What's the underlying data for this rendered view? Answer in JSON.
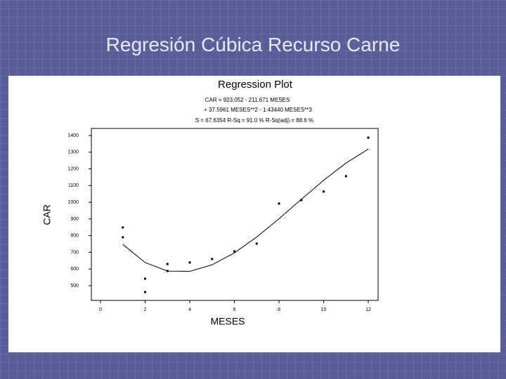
{
  "slide_title": "Regresión Cúbica Recurso Carne",
  "chart_data": {
    "type": "scatter",
    "title": "Regression Plot",
    "subtitle": [
      "CAR = 923.052 - 211.671 MESES",
      "+ 37.5961 MESES**2 - 1.43440 MESES**3",
      "S = 67.6354      R-Sq = 91.0 %      R-Sq(adj) = 88.6 %"
    ],
    "x_label": "MESES",
    "y_label": "CAR",
    "xlim": [
      -0.41,
      12.44
    ],
    "ylim": [
      412,
      1442
    ],
    "xticks": [
      0,
      2,
      4,
      6,
      8,
      10,
      12
    ],
    "yticks": [
      500,
      600,
      700,
      800,
      900,
      1000,
      1100,
      1200,
      1300,
      1400
    ],
    "series": [
      {
        "name": "observed",
        "kind": "points",
        "color": "#000000",
        "x": [
          1,
          1,
          2,
          2,
          3,
          3,
          4,
          5,
          6,
          7,
          8,
          9,
          10,
          11,
          12
        ],
        "values": [
          849,
          790,
          542,
          462,
          630,
          588,
          639,
          660,
          706,
          752,
          992,
          1013,
          1064,
          1156,
          1387
        ]
      },
      {
        "name": "fit",
        "kind": "line",
        "color": "#000000",
        "x": [
          1,
          2,
          3,
          4,
          5,
          6,
          7,
          8,
          9,
          10,
          11,
          12
        ],
        "values": [
          747.54,
          638.62,
          587.67,
          586.1,
          625.3,
          696.66,
          791.56,
          901.42,
          1017.61,
          1131.55,
          1234.61,
          1318.2
        ]
      }
    ]
  }
}
